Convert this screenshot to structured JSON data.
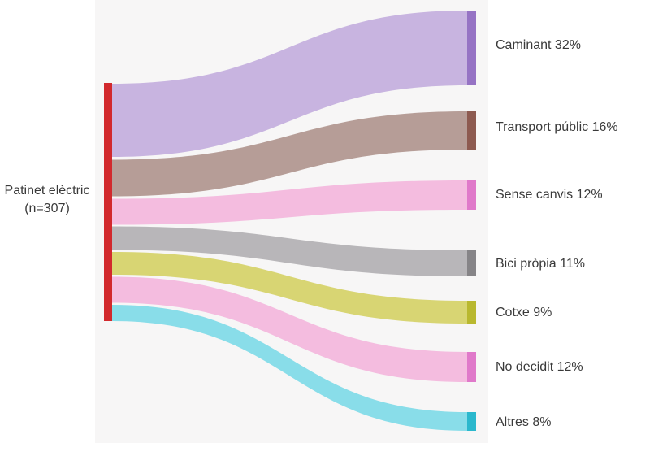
{
  "page": {
    "background": "#ffffff",
    "panel_background": "#f7f6f6",
    "text_color": "#3a3a3a"
  },
  "chart_data": {
    "type": "sankey",
    "title": "",
    "source_node": {
      "label": "Patinet elèctric",
      "sublabel": "(n=307)",
      "n": 307,
      "color": "#d2292d"
    },
    "flows": [
      {
        "target": "Caminant",
        "percent": 32,
        "display": "Caminant 32%",
        "flow_color": "#c8b4e0",
        "node_color": "#9673c4"
      },
      {
        "target": "Transport públic",
        "percent": 16,
        "display": "Transport públic 16%",
        "flow_color": "#b69d97",
        "node_color": "#8d5a50"
      },
      {
        "target": "Sense canvis",
        "percent": 12,
        "display": "Sense canvis 12%",
        "flow_color": "#f4bcdf",
        "node_color": "#e079ca"
      },
      {
        "target": "Bici pròpia",
        "percent": 11,
        "display": "Bici pròpia 11%",
        "flow_color": "#b8b6b9",
        "node_color": "#868487"
      },
      {
        "target": "Cotxe",
        "percent": 9,
        "display": "Cotxe 9%",
        "flow_color": "#d8d573",
        "node_color": "#b9b82f"
      },
      {
        "target": "No decidit",
        "percent": 12,
        "display": "No decidit 12%",
        "flow_color": "#f4bcdf",
        "node_color": "#e079ca"
      },
      {
        "target": "Altres",
        "percent": 8,
        "display": "Altres 8%",
        "flow_color": "#89dde9",
        "node_color": "#2bb8cd"
      }
    ],
    "layout_hints": {
      "orientation": "left-to-right",
      "labels_position": "right",
      "percent_total": 100
    }
  }
}
